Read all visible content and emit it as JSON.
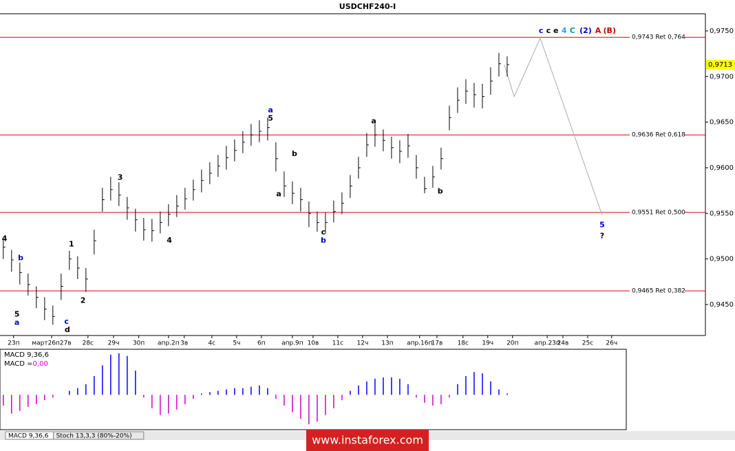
{
  "chart_data": {
    "type": "ohlc",
    "title": "USDCHF240-I",
    "x": [
      0,
      2,
      4,
      6,
      8,
      10,
      12,
      14,
      16,
      18,
      20,
      22,
      24,
      26,
      28,
      30,
      32,
      34,
      36,
      38,
      40,
      42,
      44,
      46,
      48,
      50,
      52,
      54,
      56,
      58,
      60,
      62,
      64,
      66,
      68,
      70,
      72,
      74,
      76,
      78,
      80,
      82,
      84,
      86,
      88,
      90,
      92,
      94,
      96,
      98,
      100,
      102,
      104,
      106,
      108,
      110,
      112,
      114,
      116,
      118,
      120,
      122
    ],
    "high": [
      0.9522,
      0.951,
      0.9496,
      0.9484,
      0.947,
      0.9458,
      0.9449,
      0.9484,
      0.9509,
      0.9503,
      0.949,
      0.9532,
      0.9578,
      0.959,
      0.9584,
      0.9568,
      0.9555,
      0.9545,
      0.9544,
      0.9552,
      0.956,
      0.957,
      0.9578,
      0.9587,
      0.9598,
      0.9606,
      0.9614,
      0.9624,
      0.9631,
      0.964,
      0.9648,
      0.9652,
      0.9655,
      0.9628,
      0.9596,
      0.9585,
      0.9578,
      0.9563,
      0.9552,
      0.9551,
      0.9564,
      0.9573,
      0.9592,
      0.9612,
      0.9638,
      0.9648,
      0.9642,
      0.9634,
      0.963,
      0.9637,
      0.9614,
      0.959,
      0.9602,
      0.9622,
      0.9668,
      0.9688,
      0.9697,
      0.9693,
      0.9692,
      0.971,
      0.9726,
      0.9722
    ],
    "low": [
      0.95,
      0.9486,
      0.9472,
      0.946,
      0.9446,
      0.9433,
      0.9428,
      0.9455,
      0.9488,
      0.9478,
      0.9464,
      0.9505,
      0.9552,
      0.9564,
      0.9558,
      0.9543,
      0.953,
      0.952,
      0.9519,
      0.9528,
      0.9536,
      0.9546,
      0.9554,
      0.9564,
      0.9573,
      0.9582,
      0.959,
      0.9598,
      0.9607,
      0.9616,
      0.9624,
      0.9628,
      0.963,
      0.9596,
      0.9568,
      0.956,
      0.9552,
      0.9535,
      0.953,
      0.9528,
      0.954,
      0.9549,
      0.9567,
      0.9588,
      0.9612,
      0.9623,
      0.9618,
      0.961,
      0.9605,
      0.9611,
      0.9588,
      0.9572,
      0.9578,
      0.9598,
      0.9641,
      0.966,
      0.967,
      0.9666,
      0.9665,
      0.968,
      0.97,
      0.97
    ],
    "close": [
      0.9513,
      0.9499,
      0.9485,
      0.9472,
      0.9458,
      0.9445,
      0.9437,
      0.947,
      0.95,
      0.949,
      0.9478,
      0.952,
      0.9565,
      0.9576,
      0.957,
      0.9556,
      0.9543,
      0.9532,
      0.9531,
      0.954,
      0.9549,
      0.9558,
      0.9566,
      0.9576,
      0.9586,
      0.9594,
      0.9602,
      0.9611,
      0.9619,
      0.9628,
      0.9636,
      0.964,
      0.9644,
      0.961,
      0.958,
      0.9572,
      0.9565,
      0.955,
      0.954,
      0.954,
      0.9552,
      0.9561,
      0.958,
      0.96,
      0.9625,
      0.9636,
      0.963,
      0.9622,
      0.9618,
      0.9624,
      0.96,
      0.9577,
      0.959,
      0.961,
      0.9655,
      0.9674,
      0.9684,
      0.968,
      0.9678,
      0.9695,
      0.9714,
      0.9713
    ],
    "color": "#000000",
    "xlim": [
      -0.8,
      170
    ],
    "ylim": [
      0.94161,
      0.97688
    ],
    "yticks": [
      {
        "value": 0.945,
        "label": "0,9450"
      },
      {
        "value": 0.95,
        "label": "0,9500"
      },
      {
        "value": 0.955,
        "label": "0,9550"
      },
      {
        "value": 0.96,
        "label": "0,9600"
      },
      {
        "value": 0.965,
        "label": "0,9650"
      },
      {
        "value": 0.97,
        "label": "0,9700"
      },
      {
        "value": 0.975,
        "label": "0,9750"
      }
    ],
    "xticks": [
      {
        "value": 2.5,
        "label": "23п"
      },
      {
        "value": 11.7,
        "label": "март26п27в"
      },
      {
        "value": 20.5,
        "label": "28с"
      },
      {
        "value": 26.7,
        "label": "29ч"
      },
      {
        "value": 32.8,
        "label": "30п"
      },
      {
        "value": 40,
        "label": "апр.2п"
      },
      {
        "value": 43.8,
        "label": "3в"
      },
      {
        "value": 50.5,
        "label": "4с"
      },
      {
        "value": 56.5,
        "label": "5ч"
      },
      {
        "value": 62.5,
        "label": "6п"
      },
      {
        "value": 70,
        "label": "апр.9п"
      },
      {
        "value": 75,
        "label": "10в"
      },
      {
        "value": 81,
        "label": "11с"
      },
      {
        "value": 87,
        "label": "12ч"
      },
      {
        "value": 93,
        "label": "13п"
      },
      {
        "value": 100.8,
        "label": "апр.16п"
      },
      {
        "value": 105,
        "label": "17в"
      },
      {
        "value": 111.3,
        "label": "18с"
      },
      {
        "value": 117.3,
        "label": "19ч"
      },
      {
        "value": 123.3,
        "label": "20п"
      },
      {
        "value": 131.7,
        "label": "апр.23п"
      },
      {
        "value": 135.5,
        "label": "24в"
      },
      {
        "value": 141.5,
        "label": "25с"
      },
      {
        "value": 147.3,
        "label": "26ч"
      }
    ],
    "levels": [
      {
        "value": 0.9743,
        "label": "0,9743 Ret 0,764"
      },
      {
        "value": 0.9636,
        "label": "0,9636 Ret 0,618"
      },
      {
        "value": 0.9551,
        "label": "0,9551 Ret 0,500"
      },
      {
        "value": 0.9465,
        "label": "0,9465 Ret 0,382"
      }
    ],
    "level_color": "#dd0000",
    "current_price": {
      "value": 0.9713,
      "label": "0,9713",
      "color": "#ffff00"
    },
    "forecast": {
      "x": [
        121.3,
        123.7,
        130,
        145
      ],
      "y": [
        0.9713,
        0.9678,
        0.9742,
        0.9548
      ],
      "color": "#aaaaaa"
    },
    "annotations": [
      {
        "text": "4",
        "x": 0.3,
        "y": 0.9522,
        "color": "#000000"
      },
      {
        "text": "5",
        "x": 3.3,
        "y": 0.9439,
        "color": "#000000"
      },
      {
        "text": "a",
        "x": 3.3,
        "y": 0.943,
        "color": "#0000cc"
      },
      {
        "text": "b",
        "x": 4.2,
        "y": 0.9501,
        "color": "#0000cc"
      },
      {
        "text": "c",
        "x": 15.3,
        "y": 0.9431,
        "color": "#0000cc"
      },
      {
        "text": "d",
        "x": 15.5,
        "y": 0.9422,
        "color": "#000000"
      },
      {
        "text": "1",
        "x": 16.5,
        "y": 0.9516,
        "color": "#000000"
      },
      {
        "text": "2",
        "x": 19.3,
        "y": 0.9454,
        "color": "#000000"
      },
      {
        "text": "3",
        "x": 28.3,
        "y": 0.9589,
        "color": "#000000"
      },
      {
        "text": "4",
        "x": 40.2,
        "y": 0.952,
        "color": "#000000"
      },
      {
        "text": "a",
        "x": 64.7,
        "y": 0.9663,
        "color": "#0000cc"
      },
      {
        "text": "5",
        "x": 64.7,
        "y": 0.9654,
        "color": "#000000"
      },
      {
        "text": "b",
        "x": 70.5,
        "y": 0.9615,
        "color": "#000000"
      },
      {
        "text": "a",
        "x": 66.7,
        "y": 0.9571,
        "color": "#000000"
      },
      {
        "text": "c",
        "x": 77.5,
        "y": 0.9529,
        "color": "#000000"
      },
      {
        "text": "b",
        "x": 77.5,
        "y": 0.952,
        "color": "#0000cc"
      },
      {
        "text": "a",
        "x": 89.7,
        "y": 0.9651,
        "color": "#000000"
      },
      {
        "text": "b",
        "x": 105.8,
        "y": 0.9574,
        "color": "#000000"
      },
      {
        "text": "5",
        "x": 145,
        "y": 0.9537,
        "color": "#0000cc"
      },
      {
        "text": "?",
        "x": 145,
        "y": 0.9525,
        "color": "#000000"
      },
      {
        "text": "c",
        "x": 130.2,
        "y": 0.975,
        "color": "#0000cc"
      },
      {
        "text": "c",
        "x": 132,
        "y": 0.975,
        "color": "#000000"
      },
      {
        "text": "e",
        "x": 133.8,
        "y": 0.975,
        "color": "#000000"
      },
      {
        "text": "4",
        "x": 135.8,
        "y": 0.975,
        "color": "#3399ff"
      },
      {
        "text": "C",
        "x": 137.8,
        "y": 0.975,
        "color": "#009999"
      },
      {
        "text": "(2)",
        "x": 141,
        "y": 0.975,
        "color": "#0000cc"
      },
      {
        "text": "A",
        "x": 144,
        "y": 0.975,
        "color": "#cc0000"
      },
      {
        "text": "(B)",
        "x": 146.8,
        "y": 0.975,
        "color": "#cc0000"
      }
    ],
    "macd": {
      "label": "MACD 9,36,6",
      "value_label": "MACD =",
      "value_text": "0,00",
      "ylim": [
        -0.0026,
        0.0034
      ],
      "positive_color": "#0000ff",
      "negative_color": "#cc00cc",
      "values": [
        -0.0008,
        -0.0014,
        -0.0012,
        -0.0009,
        -0.0007,
        -0.0004,
        -0.0002,
        0.0,
        0.0003,
        0.0005,
        0.0008,
        0.0014,
        0.0022,
        0.003,
        0.0031,
        0.0029,
        0.0018,
        -0.0002,
        -0.001,
        -0.0015,
        -0.0014,
        -0.0011,
        -0.0007,
        -0.0003,
        0.0001,
        0.0002,
        0.0003,
        0.0004,
        0.0005,
        0.0005,
        0.0006,
        0.0007,
        0.0005,
        -0.0003,
        -0.0008,
        -0.0013,
        -0.0018,
        -0.0022,
        -0.002,
        -0.0015,
        -0.001,
        -0.0004,
        0.0003,
        0.0007,
        0.001,
        0.0012,
        0.0013,
        0.0013,
        0.0012,
        0.0008,
        -0.0002,
        -0.0006,
        -0.0008,
        -0.0007,
        -0.0002,
        0.0008,
        0.0014,
        0.0017,
        0.0016,
        0.001,
        0.0004,
        0.0001
      ]
    },
    "tabs": [
      "MACD 9,36,6",
      "Stoch 13,3,3 (80%-20%)"
    ],
    "watermark": "www.instaforex.com"
  }
}
